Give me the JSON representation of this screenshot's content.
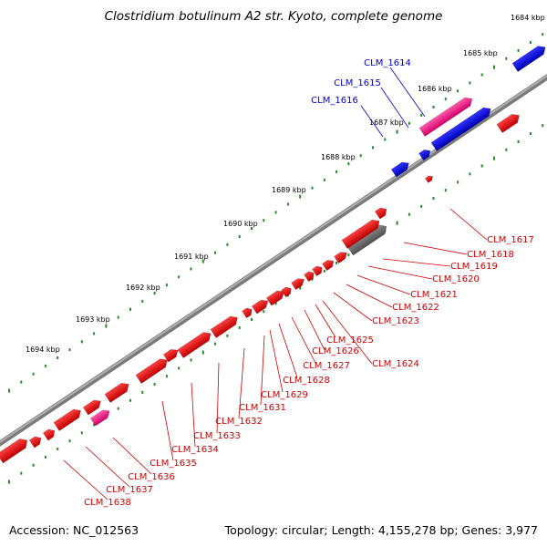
{
  "title": "Clostridium botulinum A2 str. Kyoto, complete genome",
  "footer": {
    "accession": "Accession: NC_012563",
    "stats": "Topology: circular; Length: 4,155,278 bp; Genes: 3,977"
  },
  "colors": {
    "plus_strand": "#e00000",
    "minus_strand": "#0000dd",
    "rna": "#ff1a8c",
    "pseudo": "#707070",
    "backbone": "#808080",
    "tick": "#228b22",
    "label_plus": "#cc0000",
    "label_minus": "#0000cc"
  },
  "kbp_labels": [
    "1684 kbp",
    "1685 kbp",
    "1686 kbp",
    "1687 kbp",
    "1688 kbp",
    "1689 kbp",
    "1690 kbp",
    "1691 kbp",
    "1692 kbp",
    "1693 kbp",
    "1694 kbp"
  ],
  "genes_minus": [
    "CLM_1614",
    "CLM_1615",
    "CLM_1616"
  ],
  "genes_plus": [
    "CLM_1617",
    "CLM_1618",
    "CLM_1619",
    "CLM_1620",
    "CLM_1621",
    "CLM_1622",
    "CLM_1623",
    "CLM_1624",
    "CLM_1625",
    "CLM_1626",
    "CLM_1627",
    "CLM_1628",
    "CLM_1629",
    "CLM_1631",
    "CLM_1632",
    "CLM_1633",
    "CLM_1634",
    "CLM_1635",
    "CLM_1636",
    "CLM_1637",
    "CLM_1638"
  ]
}
